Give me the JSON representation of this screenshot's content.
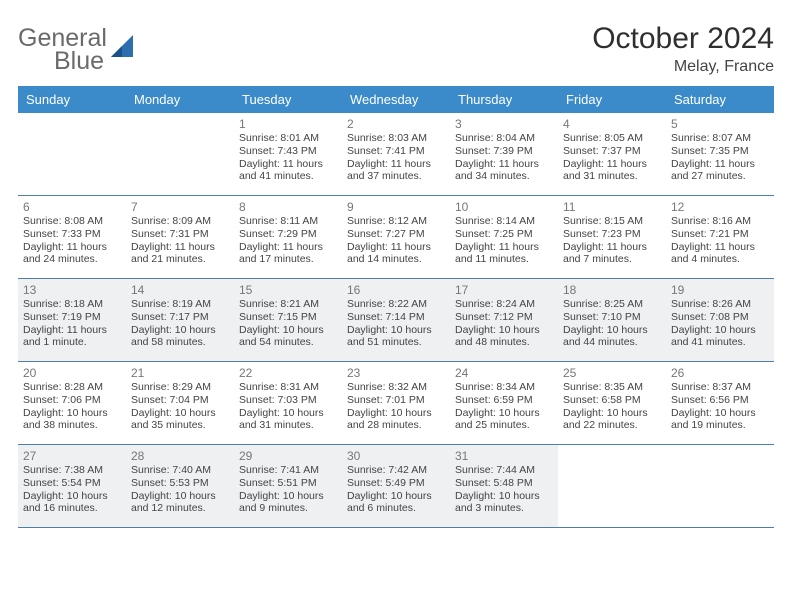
{
  "logo": {
    "text_general": "General",
    "text_blue": "Blue",
    "icon_color": "#2b6fb0"
  },
  "title": "October 2024",
  "subtitle": "Melay, France",
  "colors": {
    "header_bg": "#3b8bca",
    "header_fg": "#ffffff",
    "row_border": "#4b7fa8",
    "shade_bg": "#eef0f2",
    "daynum_color": "#777777",
    "info_color": "#444444"
  },
  "day_headers": [
    "Sunday",
    "Monday",
    "Tuesday",
    "Wednesday",
    "Thursday",
    "Friday",
    "Saturday"
  ],
  "weeks": [
    {
      "shaded": false,
      "cells": [
        {
          "empty": true
        },
        {
          "empty": true
        },
        {
          "day": "1",
          "sunrise": "Sunrise: 8:01 AM",
          "sunset": "Sunset: 7:43 PM",
          "daylight": "Daylight: 11 hours and 41 minutes."
        },
        {
          "day": "2",
          "sunrise": "Sunrise: 8:03 AM",
          "sunset": "Sunset: 7:41 PM",
          "daylight": "Daylight: 11 hours and 37 minutes."
        },
        {
          "day": "3",
          "sunrise": "Sunrise: 8:04 AM",
          "sunset": "Sunset: 7:39 PM",
          "daylight": "Daylight: 11 hours and 34 minutes."
        },
        {
          "day": "4",
          "sunrise": "Sunrise: 8:05 AM",
          "sunset": "Sunset: 7:37 PM",
          "daylight": "Daylight: 11 hours and 31 minutes."
        },
        {
          "day": "5",
          "sunrise": "Sunrise: 8:07 AM",
          "sunset": "Sunset: 7:35 PM",
          "daylight": "Daylight: 11 hours and 27 minutes."
        }
      ]
    },
    {
      "shaded": false,
      "cells": [
        {
          "day": "6",
          "sunrise": "Sunrise: 8:08 AM",
          "sunset": "Sunset: 7:33 PM",
          "daylight": "Daylight: 11 hours and 24 minutes."
        },
        {
          "day": "7",
          "sunrise": "Sunrise: 8:09 AM",
          "sunset": "Sunset: 7:31 PM",
          "daylight": "Daylight: 11 hours and 21 minutes."
        },
        {
          "day": "8",
          "sunrise": "Sunrise: 8:11 AM",
          "sunset": "Sunset: 7:29 PM",
          "daylight": "Daylight: 11 hours and 17 minutes."
        },
        {
          "day": "9",
          "sunrise": "Sunrise: 8:12 AM",
          "sunset": "Sunset: 7:27 PM",
          "daylight": "Daylight: 11 hours and 14 minutes."
        },
        {
          "day": "10",
          "sunrise": "Sunrise: 8:14 AM",
          "sunset": "Sunset: 7:25 PM",
          "daylight": "Daylight: 11 hours and 11 minutes."
        },
        {
          "day": "11",
          "sunrise": "Sunrise: 8:15 AM",
          "sunset": "Sunset: 7:23 PM",
          "daylight": "Daylight: 11 hours and 7 minutes."
        },
        {
          "day": "12",
          "sunrise": "Sunrise: 8:16 AM",
          "sunset": "Sunset: 7:21 PM",
          "daylight": "Daylight: 11 hours and 4 minutes."
        }
      ]
    },
    {
      "shaded": true,
      "cells": [
        {
          "day": "13",
          "sunrise": "Sunrise: 8:18 AM",
          "sunset": "Sunset: 7:19 PM",
          "daylight": "Daylight: 11 hours and 1 minute."
        },
        {
          "day": "14",
          "sunrise": "Sunrise: 8:19 AM",
          "sunset": "Sunset: 7:17 PM",
          "daylight": "Daylight: 10 hours and 58 minutes."
        },
        {
          "day": "15",
          "sunrise": "Sunrise: 8:21 AM",
          "sunset": "Sunset: 7:15 PM",
          "daylight": "Daylight: 10 hours and 54 minutes."
        },
        {
          "day": "16",
          "sunrise": "Sunrise: 8:22 AM",
          "sunset": "Sunset: 7:14 PM",
          "daylight": "Daylight: 10 hours and 51 minutes."
        },
        {
          "day": "17",
          "sunrise": "Sunrise: 8:24 AM",
          "sunset": "Sunset: 7:12 PM",
          "daylight": "Daylight: 10 hours and 48 minutes."
        },
        {
          "day": "18",
          "sunrise": "Sunrise: 8:25 AM",
          "sunset": "Sunset: 7:10 PM",
          "daylight": "Daylight: 10 hours and 44 minutes."
        },
        {
          "day": "19",
          "sunrise": "Sunrise: 8:26 AM",
          "sunset": "Sunset: 7:08 PM",
          "daylight": "Daylight: 10 hours and 41 minutes."
        }
      ]
    },
    {
      "shaded": false,
      "cells": [
        {
          "day": "20",
          "sunrise": "Sunrise: 8:28 AM",
          "sunset": "Sunset: 7:06 PM",
          "daylight": "Daylight: 10 hours and 38 minutes."
        },
        {
          "day": "21",
          "sunrise": "Sunrise: 8:29 AM",
          "sunset": "Sunset: 7:04 PM",
          "daylight": "Daylight: 10 hours and 35 minutes."
        },
        {
          "day": "22",
          "sunrise": "Sunrise: 8:31 AM",
          "sunset": "Sunset: 7:03 PM",
          "daylight": "Daylight: 10 hours and 31 minutes."
        },
        {
          "day": "23",
          "sunrise": "Sunrise: 8:32 AM",
          "sunset": "Sunset: 7:01 PM",
          "daylight": "Daylight: 10 hours and 28 minutes."
        },
        {
          "day": "24",
          "sunrise": "Sunrise: 8:34 AM",
          "sunset": "Sunset: 6:59 PM",
          "daylight": "Daylight: 10 hours and 25 minutes."
        },
        {
          "day": "25",
          "sunrise": "Sunrise: 8:35 AM",
          "sunset": "Sunset: 6:58 PM",
          "daylight": "Daylight: 10 hours and 22 minutes."
        },
        {
          "day": "26",
          "sunrise": "Sunrise: 8:37 AM",
          "sunset": "Sunset: 6:56 PM",
          "daylight": "Daylight: 10 hours and 19 minutes."
        }
      ]
    },
    {
      "shaded": true,
      "cells": [
        {
          "day": "27",
          "sunrise": "Sunrise: 7:38 AM",
          "sunset": "Sunset: 5:54 PM",
          "daylight": "Daylight: 10 hours and 16 minutes."
        },
        {
          "day": "28",
          "sunrise": "Sunrise: 7:40 AM",
          "sunset": "Sunset: 5:53 PM",
          "daylight": "Daylight: 10 hours and 12 minutes."
        },
        {
          "day": "29",
          "sunrise": "Sunrise: 7:41 AM",
          "sunset": "Sunset: 5:51 PM",
          "daylight": "Daylight: 10 hours and 9 minutes."
        },
        {
          "day": "30",
          "sunrise": "Sunrise: 7:42 AM",
          "sunset": "Sunset: 5:49 PM",
          "daylight": "Daylight: 10 hours and 6 minutes."
        },
        {
          "day": "31",
          "sunrise": "Sunrise: 7:44 AM",
          "sunset": "Sunset: 5:48 PM",
          "daylight": "Daylight: 10 hours and 3 minutes."
        },
        {
          "empty": true
        },
        {
          "empty": true
        }
      ]
    }
  ]
}
